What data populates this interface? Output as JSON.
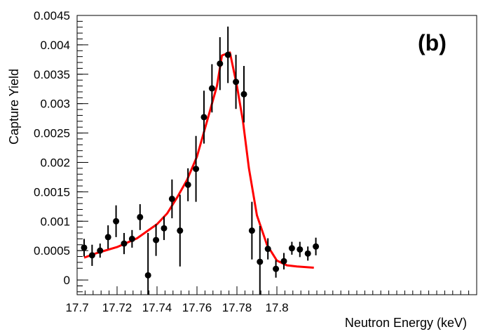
{
  "chart_data": {
    "type": "scatter",
    "panel_label": "(b)",
    "xlabel": "Neutron Energy (keV)",
    "ylabel": "Capture Yield",
    "xlim": [
      17.7,
      17.9
    ],
    "ylim": [
      -0.00025,
      0.0045
    ],
    "x_ticks": [
      17.7,
      17.72,
      17.74,
      17.76,
      17.78,
      17.8
    ],
    "x_tick_labels": [
      "17.7",
      "17.72",
      "17.74",
      "17.76",
      "17.78",
      "17.8"
    ],
    "y_ticks": [
      0,
      0.0005,
      0.001,
      0.0015,
      0.002,
      0.0025,
      0.003,
      0.0035,
      0.004,
      0.0045
    ],
    "y_tick_labels": [
      "0",
      "0.0005",
      "0.001",
      "0.0015",
      "0.002",
      "0.0025",
      "0.003",
      "0.0035",
      "0.004",
      "0.0045"
    ],
    "grid": false,
    "series": [
      {
        "kind": "points_with_errors",
        "color": "#000000",
        "x": [
          17.7035,
          17.7075,
          17.7115,
          17.7155,
          17.7195,
          17.7235,
          17.7275,
          17.7315,
          17.7355,
          17.7395,
          17.7435,
          17.7475,
          17.7515,
          17.7555,
          17.7595,
          17.7635,
          17.7675,
          17.7715,
          17.7755,
          17.7795,
          17.7835,
          17.7875,
          17.7915,
          17.7955,
          17.7995,
          17.8035,
          17.8075,
          17.8115,
          17.8155,
          17.8195
        ],
        "y": [
          0.00055,
          0.00042,
          0.0005,
          0.00073,
          0.001,
          0.00062,
          0.0007,
          0.00107,
          8e-05,
          0.00068,
          0.00088,
          0.00138,
          0.00084,
          0.00162,
          0.00189,
          0.00277,
          0.00326,
          0.00368,
          0.00383,
          0.00337,
          0.00316,
          0.00084,
          0.00031,
          0.00053,
          0.00019,
          0.00032,
          0.00054,
          0.00052,
          0.00045,
          0.00057
        ],
        "yerr": [
          0.00015,
          0.00018,
          0.00012,
          0.0002,
          0.00027,
          0.00018,
          0.00015,
          0.00022,
          0.00072,
          0.00027,
          0.0002,
          0.00033,
          0.00061,
          0.00028,
          0.00056,
          0.00045,
          0.00041,
          0.00045,
          0.00048,
          0.00046,
          0.00048,
          0.00049,
          0.00061,
          0.00018,
          0.00015,
          0.00014,
          0.00011,
          0.00013,
          0.00012,
          0.00015
        ]
      },
      {
        "kind": "fit_curve",
        "color": "#ff0000",
        "x": [
          17.7035,
          17.71,
          17.72,
          17.73,
          17.74,
          17.745,
          17.75,
          17.755,
          17.76,
          17.765,
          17.77,
          17.7725,
          17.7765,
          17.78,
          17.783,
          17.786,
          17.79,
          17.795,
          17.8,
          17.805,
          17.81,
          17.8185
        ],
        "y": [
          0.00038,
          0.00046,
          0.00056,
          0.00071,
          0.00095,
          0.00113,
          0.0014,
          0.0017,
          0.0021,
          0.0027,
          0.0033,
          0.00382,
          0.00387,
          0.0033,
          0.0027,
          0.0019,
          0.0011,
          0.0006,
          0.00033,
          0.00025,
          0.00023,
          0.00021
        ]
      }
    ]
  }
}
